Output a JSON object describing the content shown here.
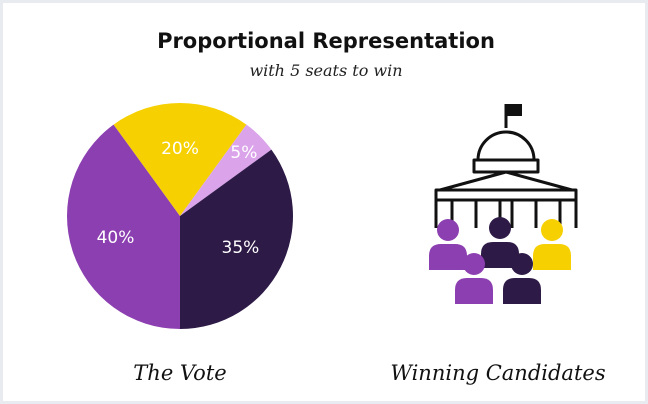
{
  "chart_data": {
    "type": "pie",
    "title": "Proportional Representation",
    "subtitle": "with 5 seats to win",
    "values": [
      40,
      20,
      5,
      35
    ],
    "value_labels": [
      "40%",
      "20%",
      "5%",
      "35%"
    ],
    "colors": [
      "#8c3fb0",
      "#f6d000",
      "#daa3ea",
      "#2d1a46"
    ],
    "caption": "The Vote"
  },
  "illustration": {
    "caption": "Winning Candidates"
  }
}
